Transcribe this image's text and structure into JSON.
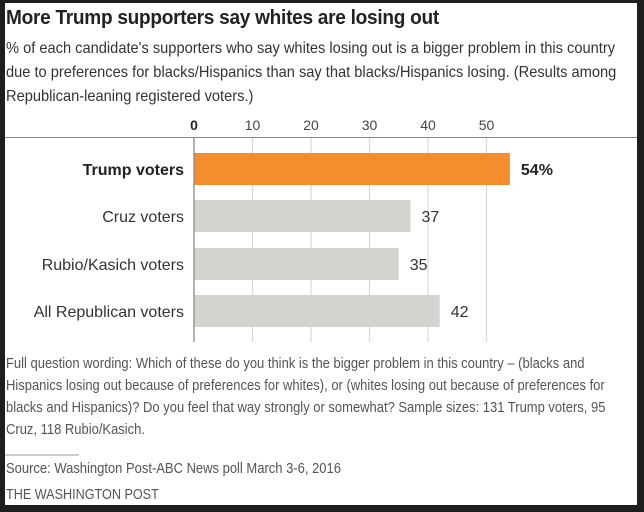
{
  "colors": {
    "highlight": "#F58D2D",
    "bar": "#D3D3D0",
    "grid": "#D8D8D8",
    "baseline": "#888888"
  },
  "chart_data": {
    "type": "bar",
    "orientation": "horizontal",
    "title": "More Trump supporters say whites are losing out",
    "subtitle": "% of each candidate's supporters who say whites losing out is a bigger problem in this country due to preferences for blacks/Hispanics than say that blacks/Hispanics losing. (Results among Republican-leaning registered voters.)",
    "categories": [
      "Trump voters",
      "Cruz voters",
      "Rubio/Kasich voters",
      "All Republican voters"
    ],
    "values": [
      54,
      37,
      35,
      42
    ],
    "value_labels": [
      "54%",
      "37",
      "35",
      "42"
    ],
    "highlight_index": 0,
    "xlim": [
      0,
      55
    ],
    "xticks": [
      0,
      10,
      20,
      30,
      40,
      50
    ],
    "xtick_labels": [
      "0",
      "10",
      "20",
      "30",
      "40",
      "50"
    ],
    "xlabel": "",
    "ylabel": "",
    "grid": true,
    "axis_position": "top",
    "legend": "none"
  },
  "notes": "Full question wording: Which of these do you think is the bigger problem in this country – (blacks and Hispanics losing out because of preferences for whites), or (whites losing out because of preferences for blacks and Hispanics)? Do you feel that way strongly or somewhat? Sample sizes: 131 Trump voters, 95 Cruz, 118 Rubio/Kasich.",
  "source": "Source: Washington Post-ABC News poll March 3-6, 2016",
  "brand": "THE WASHINGTON POST"
}
